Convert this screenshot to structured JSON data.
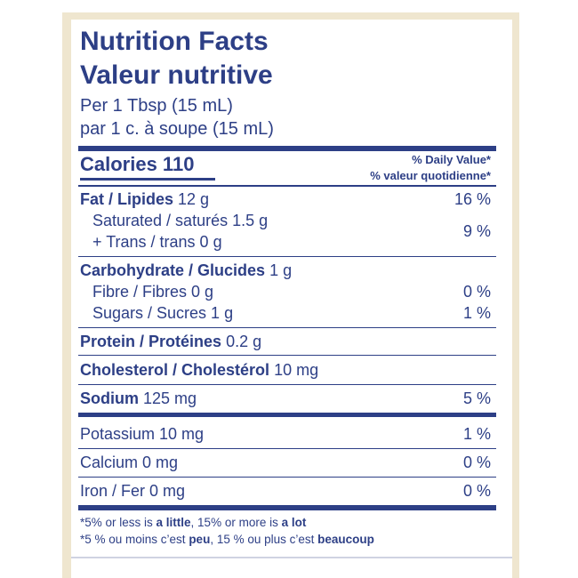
{
  "title_en": "Nutrition Facts",
  "title_fr": "Valeur nutritive",
  "serving_en": "Per 1 Tbsp (15 mL)",
  "serving_fr": "par 1 c. à soupe (15 mL)",
  "calories_label": "Calories 110",
  "dv_header_en": "% Daily Value*",
  "dv_header_fr": "% valeur quotidienne*",
  "fat": {
    "label": "Fat / Lipides",
    "amount": "12 g",
    "dv": "16 %"
  },
  "saturated": {
    "label": "Saturated / saturés 1.5 g"
  },
  "trans": {
    "label": "+ Trans / trans 0 g"
  },
  "sat_trans_dv": "9 %",
  "carbohydrate": {
    "label": "Carbohydrate / Glucides",
    "amount": "1 g"
  },
  "fibre": {
    "label": "Fibre / Fibres 0 g",
    "dv": "0 %"
  },
  "sugars": {
    "label": "Sugars / Sucres 1 g",
    "dv": "1 %"
  },
  "protein": {
    "label": "Protein / Protéines",
    "amount": "0.2 g"
  },
  "cholesterol": {
    "label": "Cholesterol / Cholestérol",
    "amount": "10 mg"
  },
  "sodium": {
    "label": "Sodium",
    "amount": "125 mg",
    "dv": "5 %"
  },
  "potassium": {
    "label": "Potassium 10 mg",
    "dv": "1 %"
  },
  "calcium": {
    "label": "Calcium 0 mg",
    "dv": "0 %"
  },
  "iron": {
    "label": "Iron / Fer 0 mg",
    "dv": "0 %"
  },
  "footnote_en": {
    "p1": "*5% or less is ",
    "b1": "a little",
    "p2": ", 15% or more is ",
    "b2": "a lot"
  },
  "footnote_fr": {
    "p1": "*5 % ou moins c’est ",
    "b1": "peu",
    "p2": ", 15 % ou plus c’est ",
    "b2": "beaucoup"
  },
  "colors": {
    "ink": "#2d3f86",
    "background": "#ffffff",
    "packaging": "#efe6cf"
  }
}
